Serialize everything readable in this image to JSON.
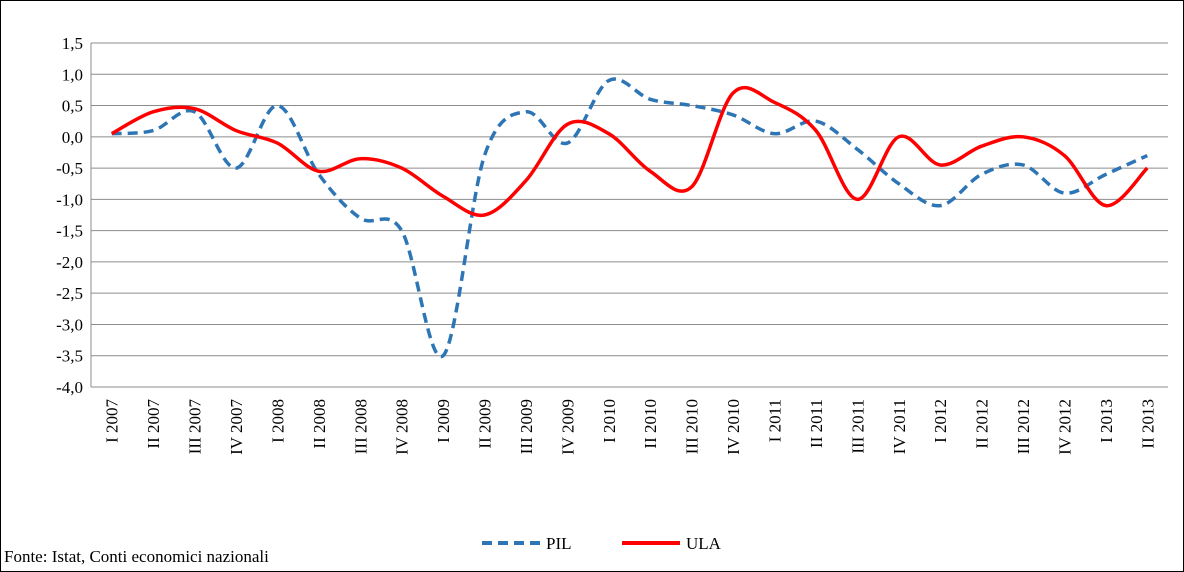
{
  "chart_data": {
    "type": "line",
    "categories": [
      "I 2007",
      "II 2007",
      "III 2007",
      "IV 2007",
      "I 2008",
      "II 2008",
      "III 2008",
      "IV 2008",
      "I 2009",
      "II 2009",
      "III 2009",
      "IV 2009",
      "I 2010",
      "II 2010",
      "III 2010",
      "IV 2010",
      "I 2011",
      "II 2011",
      "III 2011",
      "IV 2011",
      "I 2012",
      "II 2012",
      "III 2012",
      "IV 2012",
      "I 2013",
      "II 2013"
    ],
    "series": [
      {
        "name": "PIL",
        "color": "#2e75b6",
        "dashed": true,
        "values": [
          0.05,
          0.1,
          0.4,
          -0.5,
          0.5,
          -0.6,
          -1.3,
          -1.5,
          -3.5,
          -0.3,
          0.4,
          -0.1,
          0.9,
          0.6,
          0.5,
          0.35,
          0.05,
          0.25,
          -0.2,
          -0.75,
          -1.1,
          -0.6,
          -0.45,
          -0.9,
          -0.6,
          -0.3
        ]
      },
      {
        "name": "ULA",
        "color": "#ff0000",
        "dashed": false,
        "values": [
          0.05,
          0.4,
          0.45,
          0.1,
          -0.1,
          -0.55,
          -0.35,
          -0.5,
          -0.95,
          -1.25,
          -0.7,
          0.2,
          0.05,
          -0.55,
          -0.8,
          0.7,
          0.55,
          0.1,
          -1.0,
          0.0,
          -0.45,
          -0.15,
          0.0,
          -0.3,
          -1.1,
          -0.5
        ]
      }
    ],
    "ylim": [
      -4.0,
      1.5
    ],
    "yticks": [
      {
        "value": -4.0,
        "label": "-4,0"
      },
      {
        "value": -3.5,
        "label": "-3,5"
      },
      {
        "value": -3.0,
        "label": "-3,0"
      },
      {
        "value": -2.5,
        "label": "-2,5"
      },
      {
        "value": -2.0,
        "label": "-2,0"
      },
      {
        "value": -1.5,
        "label": "-1,5"
      },
      {
        "value": -1.0,
        "label": "-1,0"
      },
      {
        "value": -0.5,
        "label": "-0,5"
      },
      {
        "value": 0.0,
        "label": "0,0"
      },
      {
        "value": 0.5,
        "label": "0,5"
      },
      {
        "value": 1.0,
        "label": "1,0"
      },
      {
        "value": 1.5,
        "label": "1,5"
      }
    ],
    "grid": true,
    "smooth": true,
    "legend": "bottom",
    "source": "Fonte: Istat, Conti economici nazionali"
  }
}
